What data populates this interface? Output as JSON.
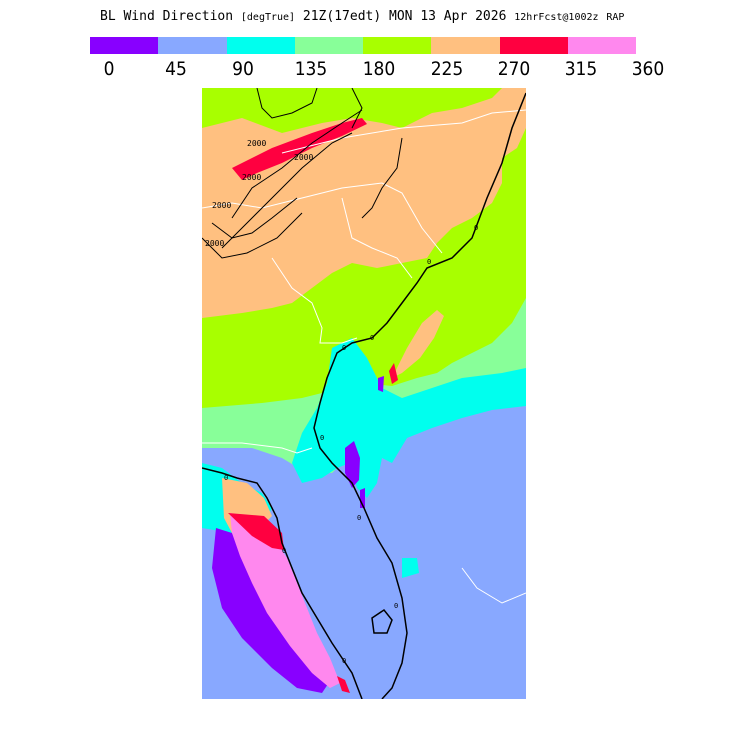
{
  "header": {
    "field": "BL Wind Direction",
    "units": "[degTrue]",
    "valid_time": "21Z(17edt)",
    "date": "MON 13 Apr 2026",
    "forecast": "12hrFcst@1002z",
    "model": "RAP"
  },
  "legend": {
    "colors": [
      "#8800ff",
      "#88a8ff",
      "#00ffee",
      "#88ff99",
      "#a8ff00",
      "#ffc080",
      "#ff0040",
      "#ff88ee"
    ],
    "ticks": [
      "0",
      "45",
      "90",
      "135",
      "180",
      "225",
      "270",
      "315",
      "360"
    ]
  },
  "map": {
    "contour_labels": [
      "2000",
      "2000",
      "2000",
      "2000",
      "2000"
    ],
    "coast_labels": [
      "0",
      "0",
      "0",
      "0",
      "0",
      "0",
      "0",
      "0",
      "0",
      "0"
    ],
    "background_color": "#88a8ff"
  }
}
